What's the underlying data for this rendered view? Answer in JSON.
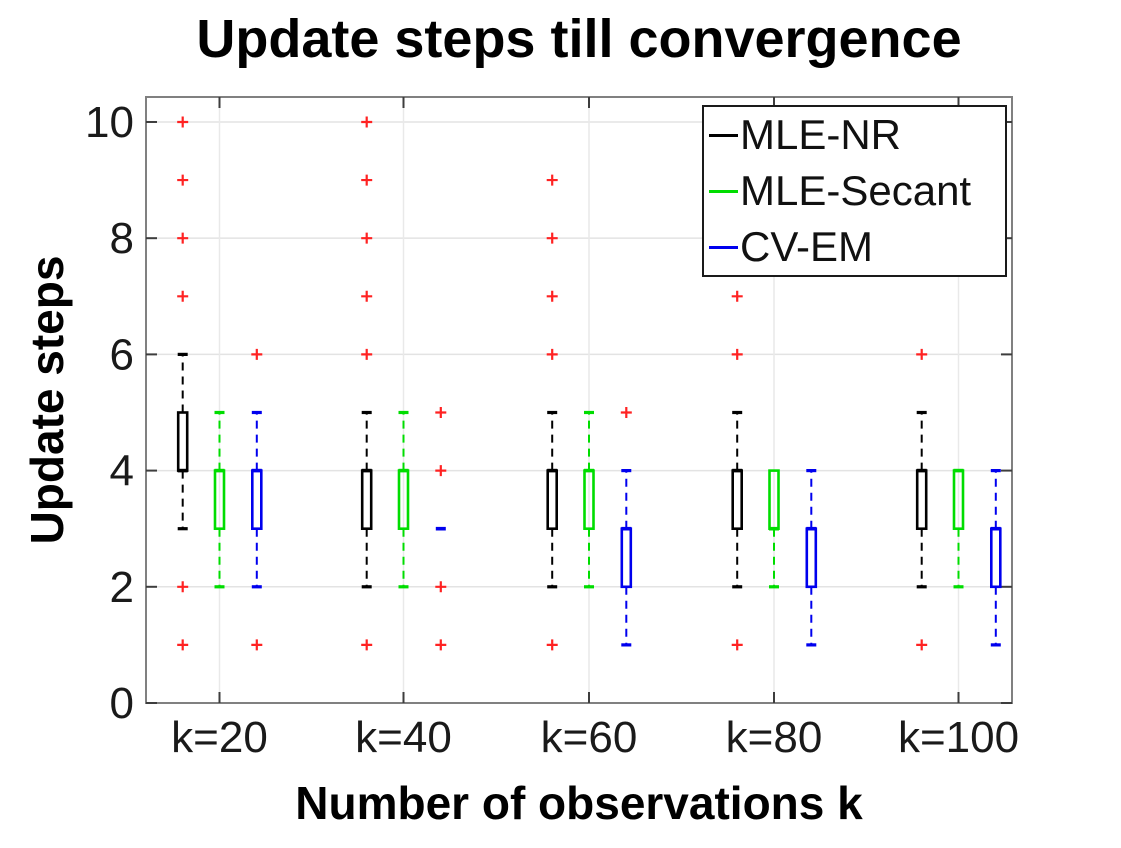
{
  "title": "Update steps till convergence",
  "chart_data": {
    "type": "boxplot",
    "title": "Update steps till convergence",
    "xlabel": "Number of observations k",
    "ylabel": "Update steps",
    "categories": [
      "k=20",
      "k=40",
      "k=60",
      "k=80",
      "k=100"
    ],
    "y_ticks": [
      0,
      2,
      4,
      6,
      8,
      10
    ],
    "ylim": [
      0,
      10
    ],
    "grid": true,
    "legend_position": "top-right",
    "outlier_marker": "+",
    "outlier_color": "#ff2222",
    "series": [
      {
        "name": "MLE-NR",
        "color": "#000000",
        "boxes": [
          {
            "category": "k=20",
            "q1": 4,
            "median": 4,
            "q3": 5,
            "whisker_low": 3,
            "whisker_high": 6,
            "outliers": [
              1,
              2,
              7,
              8,
              9,
              10
            ]
          },
          {
            "category": "k=40",
            "q1": 3,
            "median": 4,
            "q3": 4,
            "whisker_low": 2,
            "whisker_high": 5,
            "outliers": [
              1,
              6,
              7,
              8,
              9,
              10
            ]
          },
          {
            "category": "k=60",
            "q1": 3,
            "median": 4,
            "q3": 4,
            "whisker_low": 2,
            "whisker_high": 5,
            "outliers": [
              1,
              6,
              7,
              8,
              9
            ]
          },
          {
            "category": "k=80",
            "q1": 3,
            "median": 4,
            "q3": 4,
            "whisker_low": 2,
            "whisker_high": 5,
            "outliers": [
              1,
              6,
              7
            ]
          },
          {
            "category": "k=100",
            "q1": 3,
            "median": 4,
            "q3": 4,
            "whisker_low": 2,
            "whisker_high": 5,
            "outliers": [
              1,
              6
            ]
          }
        ]
      },
      {
        "name": "MLE-Secant",
        "color": "#00dd00",
        "boxes": [
          {
            "category": "k=20",
            "q1": 3,
            "median": 4,
            "q3": 4,
            "whisker_low": 2,
            "whisker_high": 5,
            "outliers": []
          },
          {
            "category": "k=40",
            "q1": 3,
            "median": 4,
            "q3": 4,
            "whisker_low": 2,
            "whisker_high": 5,
            "outliers": []
          },
          {
            "category": "k=60",
            "q1": 3,
            "median": 4,
            "q3": 4,
            "whisker_low": 2,
            "whisker_high": 5,
            "outliers": []
          },
          {
            "category": "k=80",
            "q1": 3,
            "median": 3,
            "q3": 4,
            "whisker_low": 2,
            "whisker_high": 4,
            "outliers": []
          },
          {
            "category": "k=100",
            "q1": 3,
            "median": 4,
            "q3": 4,
            "whisker_low": 2,
            "whisker_high": 4,
            "outliers": []
          }
        ]
      },
      {
        "name": "CV-EM",
        "color": "#0000ee",
        "boxes": [
          {
            "category": "k=20",
            "q1": 3,
            "median": 4,
            "q3": 4,
            "whisker_low": 2,
            "whisker_high": 5,
            "outliers": [
              1,
              6
            ]
          },
          {
            "category": "k=40",
            "q1": 3,
            "median": 3,
            "q3": 3,
            "whisker_low": 3,
            "whisker_high": 3,
            "outliers": [
              1,
              2,
              4,
              5
            ]
          },
          {
            "category": "k=60",
            "q1": 2,
            "median": 3,
            "q3": 3,
            "whisker_low": 1,
            "whisker_high": 4,
            "outliers": [
              5
            ]
          },
          {
            "category": "k=80",
            "q1": 2,
            "median": 3,
            "q3": 3,
            "whisker_low": 1,
            "whisker_high": 4,
            "outliers": []
          },
          {
            "category": "k=100",
            "q1": 2,
            "median": 3,
            "q3": 3,
            "whisker_low": 1,
            "whisker_high": 4,
            "outliers": []
          }
        ]
      }
    ]
  }
}
